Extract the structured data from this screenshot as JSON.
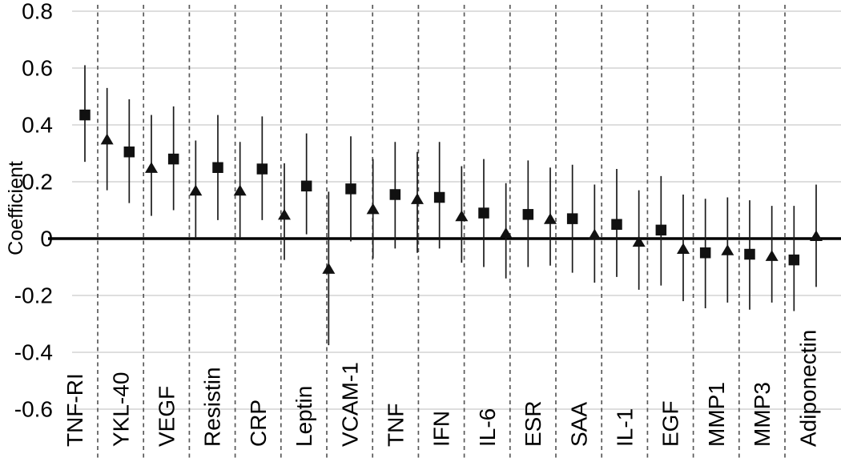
{
  "chart_data": {
    "type": "scatter",
    "title": "",
    "xlabel": "",
    "ylabel": "Coefficient",
    "ylim": [
      -0.6,
      0.8
    ],
    "ytick_labels": [
      "0.8",
      "0.6",
      "0.4",
      "0.2",
      "0",
      "-0.2",
      "-0.4",
      "-0.6"
    ],
    "ytick_values": [
      0.8,
      0.6,
      0.4,
      0.2,
      0,
      -0.2,
      -0.4,
      -0.6
    ],
    "grid": true,
    "legend": false,
    "zero_reference_line": true,
    "category_separator_style": "vertical dashed lines between categories",
    "error_bars": "vertical lines through each marker (confidence intervals), no caps",
    "categories": [
      "TNF-RI",
      "YKL-40",
      "VEGF",
      "Resistin",
      "CRP",
      "Leptin",
      "VCAM-1",
      "TNF",
      "IFN",
      "IL-6",
      "ESR",
      "SAA",
      "IL-1",
      "EGF",
      "MMP1",
      "MMP3",
      "Adiponectin"
    ],
    "series": [
      {
        "name": "square",
        "marker": "square",
        "values": [
          0.435,
          0.305,
          0.28,
          0.25,
          0.245,
          0.185,
          0.175,
          0.155,
          0.145,
          0.09,
          0.085,
          0.07,
          0.05,
          0.03,
          -0.05,
          -0.055,
          -0.075
        ],
        "ci_low": [
          0.27,
          0.125,
          0.1,
          0.065,
          0.065,
          0.015,
          -0.01,
          -0.035,
          -0.035,
          -0.1,
          -0.1,
          -0.12,
          -0.135,
          -0.165,
          -0.245,
          -0.25,
          -0.255
        ],
        "ci_high": [
          0.61,
          0.49,
          0.465,
          0.435,
          0.43,
          0.37,
          0.36,
          0.34,
          0.34,
          0.28,
          0.275,
          0.26,
          0.245,
          0.22,
          0.14,
          0.135,
          0.115
        ]
      },
      {
        "name": "triangle",
        "marker": "triangle",
        "values": [
          0.35,
          0.25,
          0.17,
          0.17,
          0.085,
          -0.105,
          0.105,
          0.14,
          0.08,
          0.02,
          0.07,
          0.015,
          -0.01,
          -0.035,
          -0.04,
          -0.06,
          0.01
        ],
        "ci_low": [
          0.17,
          0.08,
          0.0,
          0.005,
          -0.075,
          -0.375,
          -0.07,
          -0.05,
          -0.085,
          -0.14,
          -0.095,
          -0.155,
          -0.18,
          -0.22,
          -0.225,
          -0.225,
          -0.17
        ],
        "ci_high": [
          0.53,
          0.435,
          0.345,
          0.34,
          0.265,
          0.165,
          0.28,
          0.305,
          0.255,
          0.195,
          0.25,
          0.19,
          0.17,
          0.155,
          0.145,
          0.115,
          0.19
        ]
      }
    ],
    "colors": {
      "marker": "#111111",
      "error_bar": "#1a1a1a",
      "zero_line": "#000000",
      "separator": "#595959",
      "gridline": "#d9d9d9",
      "background": "#ffffff"
    }
  }
}
